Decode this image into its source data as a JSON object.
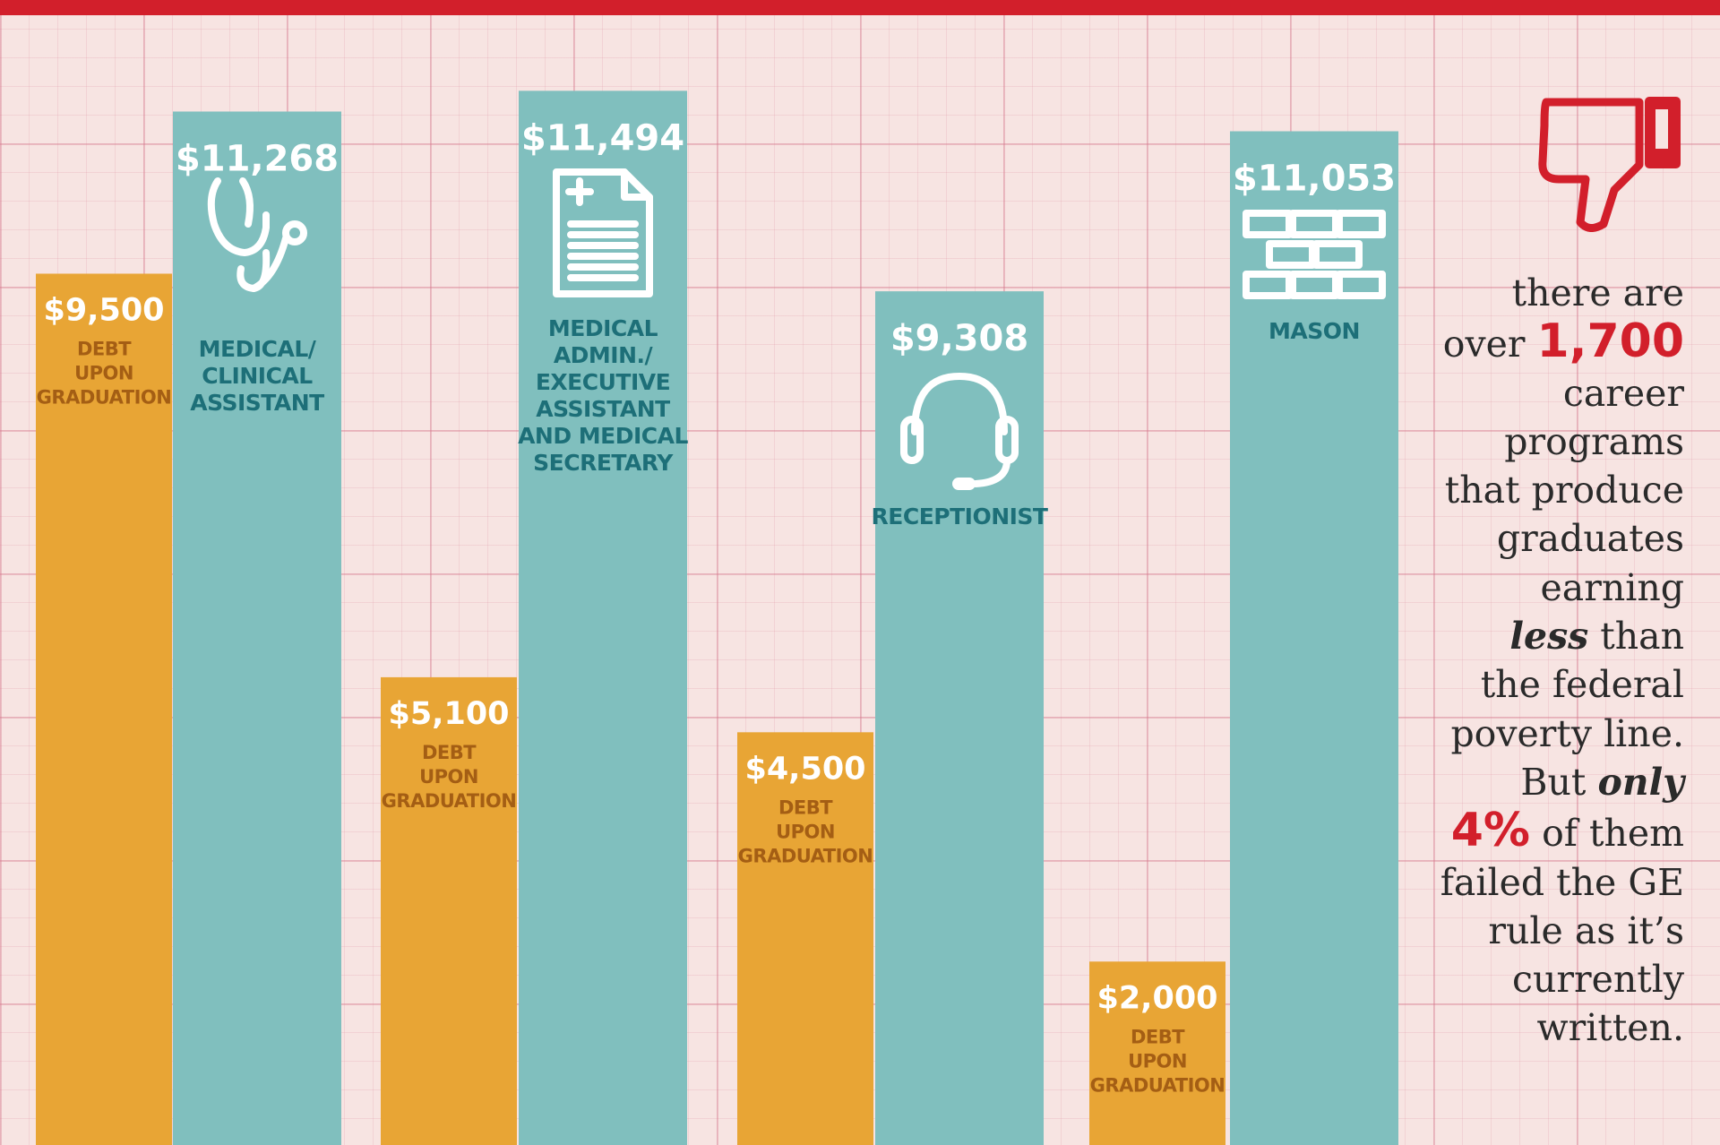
{
  "chart_data": {
    "type": "bar",
    "title": "",
    "xlabel": "",
    "ylabel": "",
    "ylim": [
      0,
      13000
    ],
    "categories": [
      "Medical/Clinical Assistant",
      "Medical Admin./Executive Assistant and Medical Secretary",
      "Receptionist",
      "Mason"
    ],
    "series": [
      {
        "name": "Debt upon graduation",
        "color": "#e8a535",
        "values": [
          9500,
          5100,
          4500,
          2000
        ],
        "labels": [
          "$9,500",
          "$5,100",
          "$4,500",
          "$2,000"
        ]
      },
      {
        "name": "Earnings",
        "color": "#80bfbe",
        "values": [
          11268,
          11494,
          9308,
          11053
        ],
        "labels": [
          "$11,268",
          "$11,494",
          "$9,308",
          "$11,053"
        ]
      }
    ],
    "debt_label": [
      "DEBT",
      "UPON",
      "GRADUATION"
    ],
    "job_labels": [
      [
        "MEDICAL/",
        "CLINICAL",
        "ASSISTANT"
      ],
      [
        "MEDICAL",
        "ADMIN./",
        "EXECUTIVE",
        "ASSISTANT",
        "AND MEDICAL",
        "SECRETARY"
      ],
      [
        "RECEPTIONIST"
      ],
      [
        "MASON"
      ]
    ],
    "icons": [
      "stethoscope-icon",
      "document-icon",
      "headset-icon",
      "brick-wall-icon"
    ]
  },
  "side_note": {
    "icon": "thumbs-down-icon",
    "highlight_color": "#d21f2b",
    "l1": "there are",
    "l2a": "over ",
    "l2b": "1,700",
    "l3": "career",
    "l4": "programs",
    "l5": "that produce",
    "l6": "graduates",
    "l7": "earning",
    "l8a": "less",
    "l8b": " than",
    "l9": "the federal",
    "l10": "poverty line.",
    "l11a": "But ",
    "l11b": "only",
    "l12a": "4%",
    "l12b": " of them",
    "l13": "failed the GE",
    "l14": "rule as it’s",
    "l15": "currently",
    "l16": "written."
  }
}
